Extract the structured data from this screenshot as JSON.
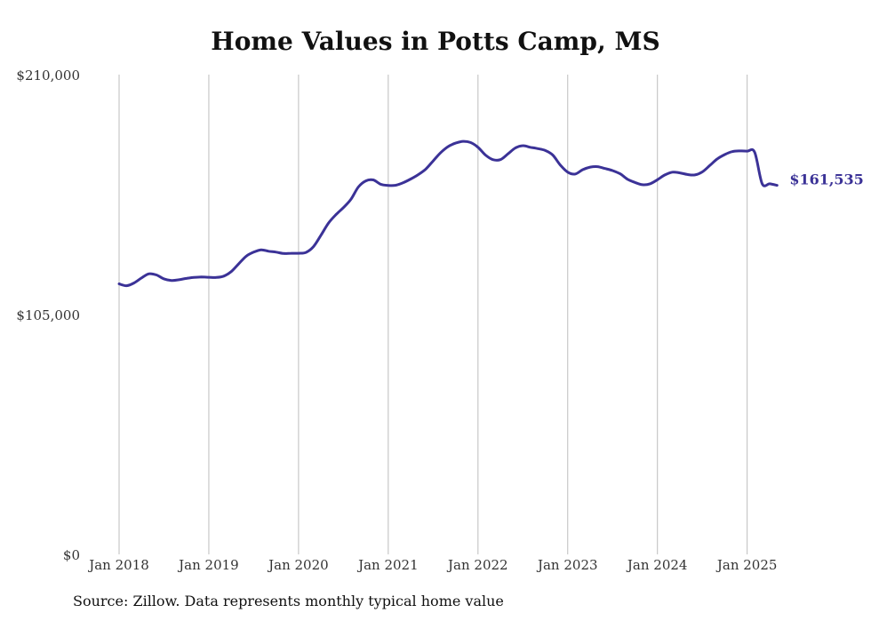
{
  "chart_data": {
    "type": "line",
    "title": "Home Values in Potts Camp, MS",
    "source": "Source: Zillow. Data represents monthly typical home value",
    "ylim": [
      0,
      210000
    ],
    "yticks": [
      {
        "value": 0,
        "label": "$0"
      },
      {
        "value": 105000,
        "label": "$105,000"
      },
      {
        "value": 210000,
        "label": "$210,000"
      }
    ],
    "xlim": [
      2018.0,
      2025.35
    ],
    "xticks": [
      {
        "value": 2018,
        "label": "Jan 2018"
      },
      {
        "value": 2019,
        "label": "Jan 2019"
      },
      {
        "value": 2020,
        "label": "Jan 2020"
      },
      {
        "value": 2021,
        "label": "Jan 2021"
      },
      {
        "value": 2022,
        "label": "Jan 2022"
      },
      {
        "value": 2023,
        "label": "Jan 2023"
      },
      {
        "value": 2024,
        "label": "Jan 2024"
      },
      {
        "value": 2025,
        "label": "Jan 2025"
      }
    ],
    "grid": "vertical",
    "line_color": "#3b3297",
    "end_label": "$161,535",
    "series": [
      {
        "x": [
          "2018-01",
          "2018-02",
          "2018-03",
          "2018-04",
          "2018-05",
          "2018-06",
          "2018-07",
          "2018-08",
          "2018-09",
          "2018-10",
          "2018-11",
          "2018-12",
          "2019-01",
          "2019-02",
          "2019-03",
          "2019-04",
          "2019-05",
          "2019-06",
          "2019-07",
          "2019-08",
          "2019-09",
          "2019-10",
          "2019-11",
          "2019-12",
          "2020-01",
          "2020-02",
          "2020-03",
          "2020-04",
          "2020-05",
          "2020-06",
          "2020-07",
          "2020-08",
          "2020-09",
          "2020-10",
          "2020-11",
          "2020-12",
          "2021-01",
          "2021-02",
          "2021-03",
          "2021-04",
          "2021-05",
          "2021-06",
          "2021-07",
          "2021-08",
          "2021-09",
          "2021-10",
          "2021-11",
          "2021-12",
          "2022-01",
          "2022-02",
          "2022-03",
          "2022-04",
          "2022-05",
          "2022-06",
          "2022-07",
          "2022-08",
          "2022-09",
          "2022-10",
          "2022-11",
          "2022-12",
          "2023-01",
          "2023-02",
          "2023-03",
          "2023-04",
          "2023-05",
          "2023-06",
          "2023-07",
          "2023-08",
          "2023-09",
          "2023-10",
          "2023-11",
          "2023-12",
          "2024-01",
          "2024-02",
          "2024-03",
          "2024-04",
          "2024-05",
          "2024-06",
          "2024-07",
          "2024-08",
          "2024-09",
          "2024-10",
          "2024-11",
          "2024-12",
          "2025-01",
          "2025-02",
          "2025-03",
          "2025-04",
          "2025-05"
        ],
        "values": [
          118400,
          117600,
          118800,
          121000,
          122800,
          122300,
          120600,
          119900,
          120200,
          120800,
          121200,
          121400,
          121300,
          121200,
          121800,
          123800,
          127200,
          130500,
          132300,
          133300,
          132700,
          132300,
          131700,
          131800,
          131800,
          132200,
          134700,
          139700,
          145000,
          148700,
          151800,
          155400,
          160800,
          163500,
          163900,
          162000,
          161500,
          161600,
          162700,
          164300,
          166200,
          168600,
          172200,
          175800,
          178500,
          180000,
          180800,
          180300,
          178200,
          174800,
          172800,
          172800,
          175300,
          177900,
          178900,
          178200,
          177600,
          176800,
          174800,
          170500,
          167300,
          166500,
          168400,
          169500,
          169700,
          168900,
          168000,
          166600,
          164200,
          162800,
          161800,
          162200,
          164000,
          166100,
          167300,
          167000,
          166300,
          166100,
          167400,
          170200,
          173100,
          175000,
          176300,
          176600,
          176500,
          176000,
          161535,
          161535,
          161535
        ],
        "values_note": ""
      }
    ]
  }
}
